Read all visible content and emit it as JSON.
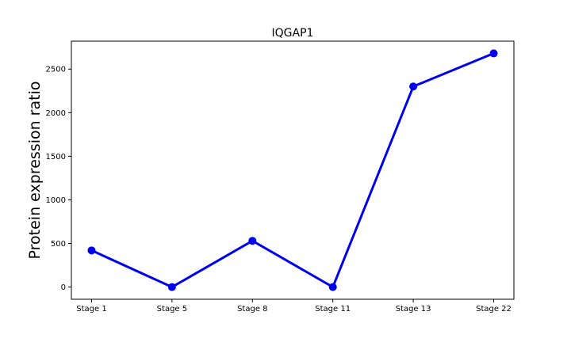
{
  "chart_data": {
    "type": "line",
    "title": "IQGAP1",
    "xlabel": "",
    "ylabel": "Protein expression ratio",
    "categories": [
      "Stage 1",
      "Stage 5",
      "Stage 8",
      "Stage 11",
      "Stage 13",
      "Stage 22"
    ],
    "series": [
      {
        "values": [
          420,
          0,
          530,
          0,
          2300,
          2680
        ],
        "color": "#0000ee"
      }
    ],
    "yticks": [
      0,
      500,
      1000,
      1500,
      2000,
      2500
    ],
    "ylim": [
      -140,
      2820
    ],
    "grid": false,
    "legend": "none"
  }
}
